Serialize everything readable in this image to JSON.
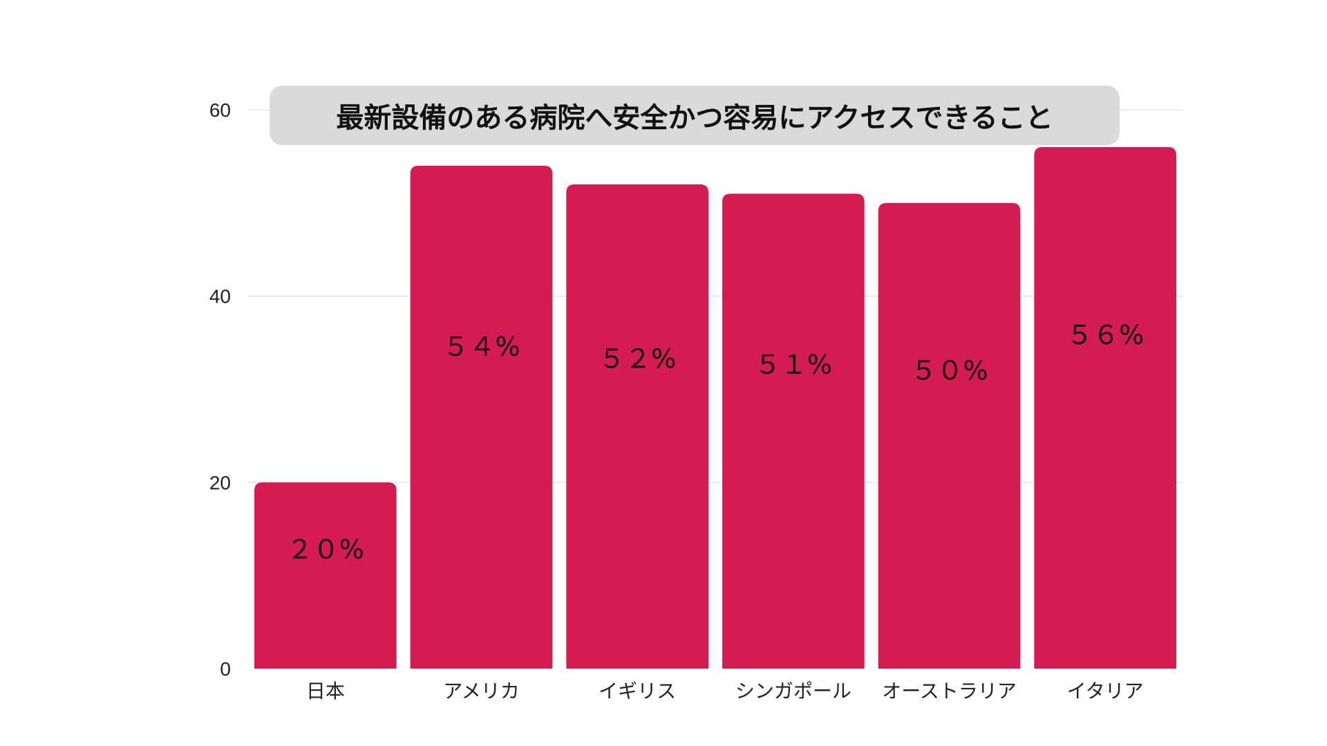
{
  "chart_data": {
    "type": "bar",
    "title": "最新設備のある病院へ安全かつ容易にアクセスできること",
    "xlabel": "",
    "ylabel": "",
    "categories": [
      "日本",
      "アメリカ",
      "イギリス",
      "シンガポール",
      "オーストラリア",
      "イタリア"
    ],
    "values": [
      20,
      54,
      52,
      51,
      50,
      56
    ],
    "data_labels": [
      "２０%",
      "５４%",
      "５２%",
      "５１%",
      "５０%",
      "５６%"
    ],
    "ylim": [
      0,
      60
    ],
    "yticks": [
      0,
      20,
      40,
      60
    ],
    "grid": true,
    "legend": "none",
    "colors": {
      "bar": "#d41b52",
      "title_background": "#dadada",
      "grid": "#e2e2e2"
    }
  }
}
